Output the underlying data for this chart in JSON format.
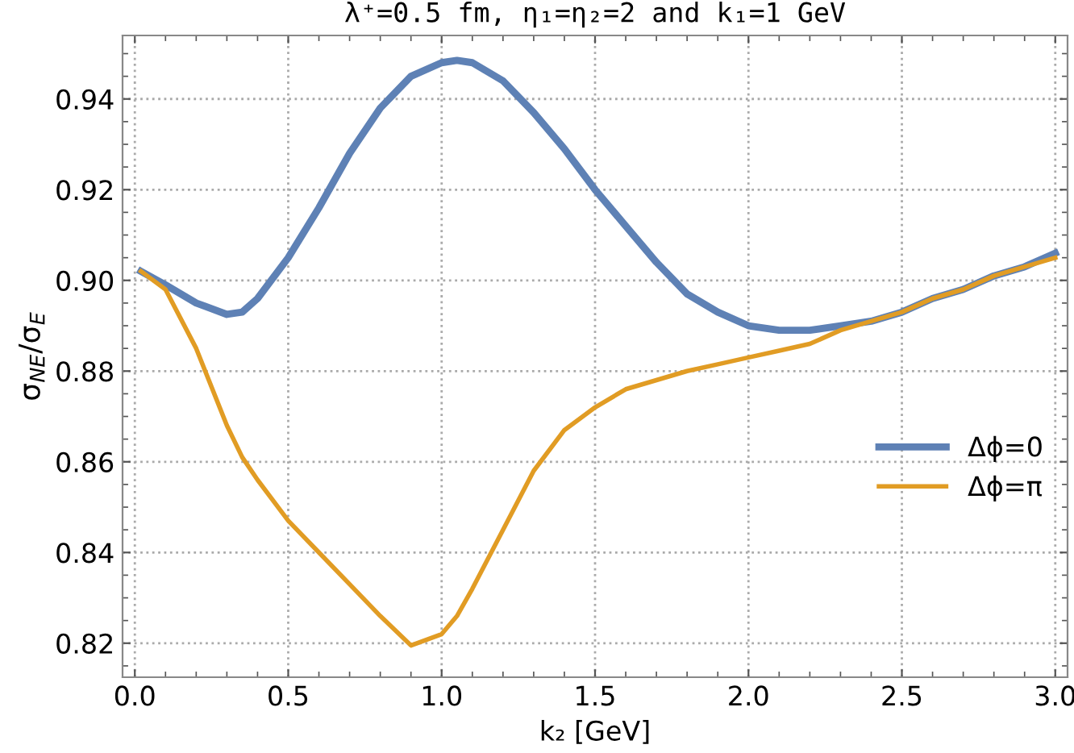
{
  "chart_data": {
    "type": "line",
    "title": "λ⁺=0.5 fm, η₁=η₂=2 and k₁=1 GeV",
    "xlabel": "k₂ [GeV]",
    "ylabel": "σ$_{NE}$/σ$_{E}$",
    "x": [
      0.02,
      0.1,
      0.2,
      0.3,
      0.35,
      0.4,
      0.5,
      0.6,
      0.7,
      0.8,
      0.9,
      1.0,
      1.05,
      1.1,
      1.2,
      1.3,
      1.4,
      1.5,
      1.6,
      1.7,
      1.8,
      1.9,
      2.0,
      2.1,
      2.2,
      2.3,
      2.4,
      2.5,
      2.6,
      2.7,
      2.8,
      2.9,
      3.0
    ],
    "series": [
      {
        "name": "Δϕ=0",
        "color": "#5e81b5",
        "values": [
          0.902,
          0.899,
          0.895,
          0.8925,
          0.893,
          0.896,
          0.905,
          0.916,
          0.928,
          0.938,
          0.945,
          0.948,
          0.9485,
          0.948,
          0.944,
          0.937,
          0.929,
          0.92,
          0.912,
          0.904,
          0.897,
          0.893,
          0.89,
          0.889,
          0.889,
          0.89,
          0.891,
          0.893,
          0.896,
          0.898,
          0.901,
          0.903,
          0.906
        ]
      },
      {
        "name": "Δϕ=π",
        "color": "#e19c24",
        "values": [
          0.902,
          0.898,
          0.885,
          0.868,
          0.861,
          0.856,
          0.847,
          0.84,
          0.833,
          0.826,
          0.8195,
          0.822,
          0.826,
          0.832,
          0.845,
          0.858,
          0.867,
          0.872,
          0.876,
          0.878,
          0.88,
          0.8815,
          0.883,
          0.8845,
          0.886,
          0.889,
          0.891,
          0.893,
          0.896,
          0.898,
          0.901,
          0.903,
          0.905
        ]
      }
    ],
    "xlim": [
      -0.04,
      3.04
    ],
    "ylim": [
      0.8125,
      0.954
    ],
    "xticks": [
      {
        "value": 0,
        "label": "0.0"
      },
      0.5,
      {
        "value": 1,
        "label": "1.0"
      },
      1.5,
      {
        "value": 2,
        "label": "2.0"
      },
      2.5,
      {
        "value": 3,
        "label": "3.0"
      }
    ],
    "yticks": [
      0.82,
      0.84,
      0.86,
      0.88,
      {
        "value": 0.9,
        "label": "0.90"
      },
      0.92,
      0.94
    ],
    "grid": true,
    "legend": "center right",
    "line_style": "solid",
    "marker": "none"
  }
}
